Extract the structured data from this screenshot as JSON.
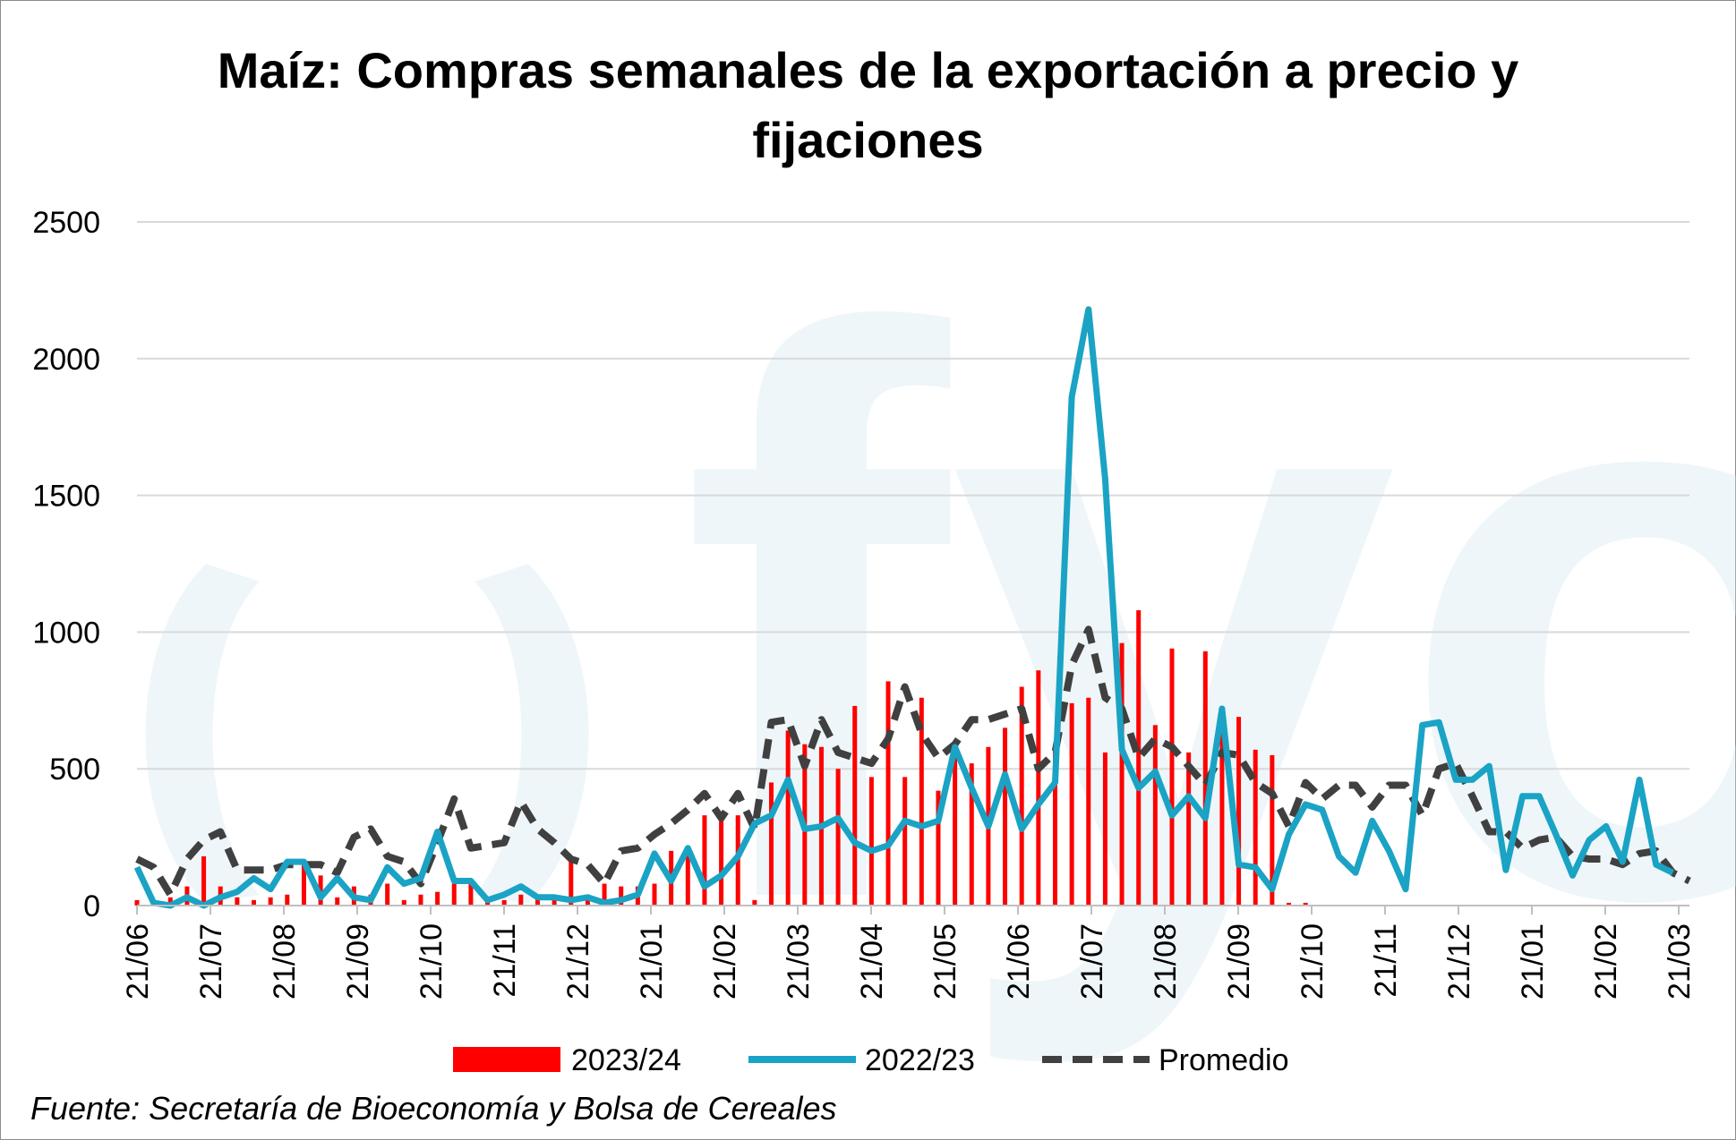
{
  "chart_data": {
    "type": "bar",
    "title_lines": [
      "Maíz: Compras semanales de la exportación a precio y",
      "fijaciones"
    ],
    "ylim": [
      0,
      2500
    ],
    "yticks": [
      0,
      500,
      1000,
      1500,
      2000,
      2500
    ],
    "xticks": [
      "21/06",
      "21/07",
      "21/08",
      "21/09",
      "21/10",
      "21/11",
      "21/12",
      "21/01",
      "21/02",
      "21/03",
      "21/04",
      "21/05",
      "21/06",
      "21/07",
      "21/08",
      "21/09",
      "21/10",
      "21/11",
      "21/12",
      "21/01",
      "21/02",
      "21/03"
    ],
    "n_weeks": 94,
    "watermark": "fyo",
    "source": "Fuente: Secretaría de Bioeconomía y Bolsa de Cereales",
    "legend": [
      {
        "name": "2023/24",
        "kind": "bar",
        "color": "#ff0000"
      },
      {
        "name": "2022/23",
        "kind": "line",
        "color": "#1aa3c4"
      },
      {
        "name": "Promedio",
        "kind": "dashed",
        "color": "#404040"
      }
    ],
    "series": [
      {
        "name": "2023/24",
        "type": "bar",
        "color": "#ff0000",
        "values": [
          20,
          5,
          30,
          70,
          180,
          70,
          30,
          20,
          30,
          40,
          160,
          110,
          30,
          70,
          40,
          80,
          20,
          40,
          50,
          80,
          90,
          30,
          20,
          40,
          30,
          30,
          170,
          40,
          80,
          70,
          70,
          80,
          200,
          210,
          330,
          310,
          330,
          20,
          450,
          640,
          590,
          580,
          500,
          730,
          470,
          820,
          470,
          760,
          420,
          590,
          520,
          580,
          650,
          800,
          860,
          580,
          740,
          760,
          560,
          960,
          1080,
          660,
          940,
          560,
          930,
          630,
          690,
          570,
          550,
          10,
          10
        ]
      },
      {
        "name": "2022/23",
        "type": "line",
        "color": "#1aa3c4",
        "values": [
          140,
          10,
          0,
          30,
          0,
          30,
          50,
          100,
          60,
          160,
          160,
          30,
          100,
          30,
          20,
          140,
          80,
          100,
          270,
          90,
          90,
          20,
          40,
          70,
          30,
          30,
          20,
          30,
          10,
          20,
          40,
          190,
          90,
          210,
          70,
          110,
          180,
          300,
          330,
          460,
          280,
          290,
          320,
          230,
          200,
          220,
          310,
          290,
          310,
          580,
          430,
          290,
          480,
          280,
          370,
          450,
          1860,
          2180,
          1560,
          570,
          430,
          490,
          330,
          400,
          320,
          720,
          150,
          140,
          60,
          260,
          370,
          350,
          180,
          120,
          310,
          200,
          60,
          660,
          670,
          460,
          460,
          510,
          130,
          400,
          400,
          260,
          110,
          240,
          290,
          160,
          460,
          150,
          120
        ]
      },
      {
        "name": "Promedio",
        "type": "line",
        "color": "#404040",
        "values": [
          170,
          140,
          40,
          170,
          240,
          270,
          130,
          130,
          130,
          150,
          150,
          150,
          120,
          250,
          280,
          180,
          160,
          80,
          230,
          390,
          210,
          220,
          230,
          380,
          280,
          230,
          170,
          150,
          80,
          200,
          210,
          260,
          300,
          350,
          410,
          320,
          410,
          280,
          670,
          680,
          510,
          680,
          560,
          540,
          520,
          610,
          800,
          630,
          540,
          590,
          680,
          680,
          700,
          720,
          500,
          560,
          880,
          1010,
          760,
          720,
          540,
          610,
          580,
          510,
          440,
          560,
          550,
          450,
          410,
          290,
          450,
          390,
          440,
          440,
          360,
          440,
          440,
          330,
          500,
          520,
          400,
          270,
          270,
          210,
          240,
          250,
          180,
          170,
          170,
          150,
          190,
          200,
          120,
          90
        ]
      }
    ]
  }
}
